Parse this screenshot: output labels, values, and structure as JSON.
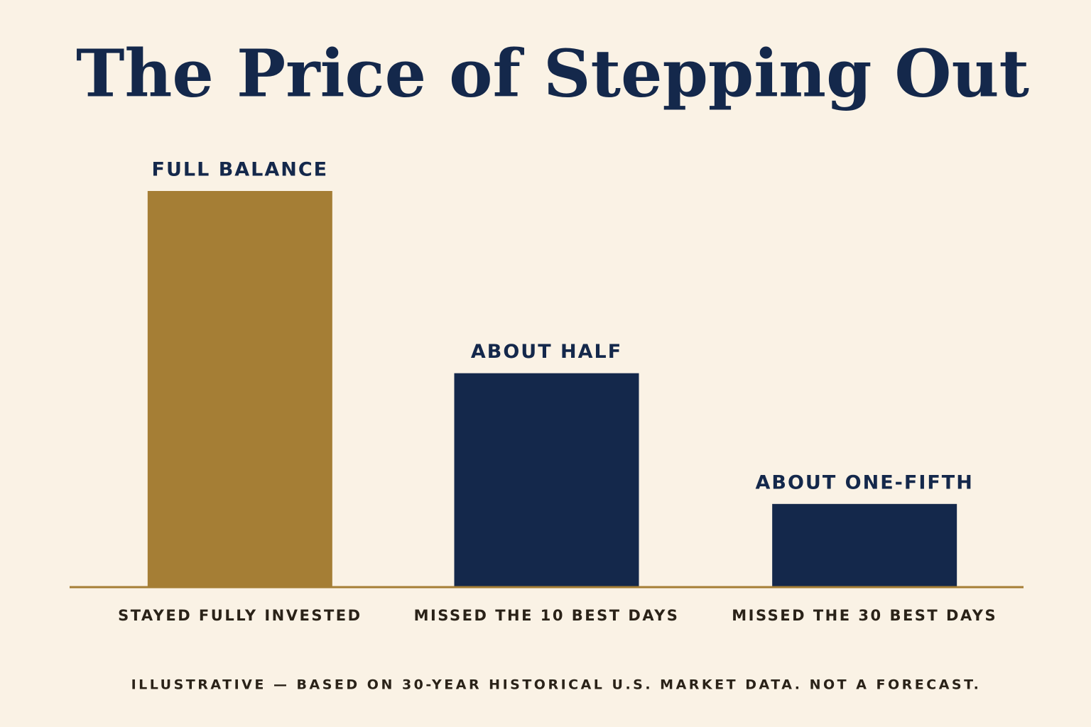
{
  "chart_data": {
    "type": "bar",
    "title": "The Price of Stepping Out",
    "categories": [
      "STAYED FULLY INVESTED",
      "MISSED THE 10 BEST DAYS",
      "MISSED THE 30 BEST DAYS"
    ],
    "values": [
      100,
      54,
      21
    ],
    "value_labels": [
      "FULL BALANCE",
      "ABOUT HALF",
      "ABOUT ONE-FIFTH"
    ],
    "colors": [
      "#a57e35",
      "#14284b",
      "#14284b"
    ],
    "baseline_color": "#a57e35",
    "note": "ILLUSTRATIVE — BASED ON 30-YEAR HISTORICAL U.S. MARKET DATA. NOT A FORECAST."
  }
}
